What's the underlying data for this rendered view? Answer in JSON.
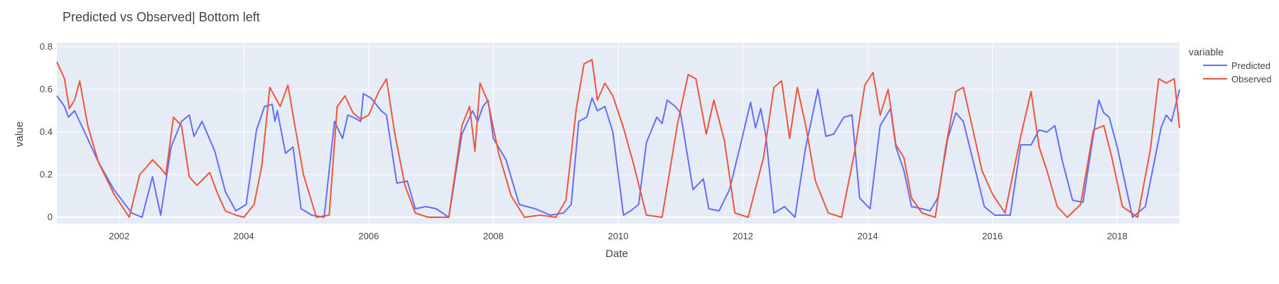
{
  "chart_data": {
    "type": "line",
    "title": "Predicted vs Observed| Bottom left",
    "xlabel": "Date",
    "ylabel": "value",
    "x_type": "date",
    "xlim": [
      "2001-01-01",
      "2019-01-01"
    ],
    "ylim": [
      -0.03,
      0.82
    ],
    "x_ticks": [
      "2002",
      "2004",
      "2006",
      "2008",
      "2010",
      "2012",
      "2014",
      "2016",
      "2018"
    ],
    "y_ticks": [
      "0",
      "0.2",
      "0.4",
      "0.6",
      "0.8"
    ],
    "grid": true,
    "legend": {
      "title": "variable",
      "placement": "right"
    },
    "series": [
      {
        "name": "Predicted",
        "color": "#636efa",
        "points": [
          [
            "2001-01-01",
            0.57
          ],
          [
            "2001-02-15",
            0.52
          ],
          [
            "2001-03-10",
            0.47
          ],
          [
            "2001-04-15",
            0.5
          ],
          [
            "2001-06-01",
            0.42
          ],
          [
            "2001-09-01",
            0.26
          ],
          [
            "2001-12-01",
            0.13
          ],
          [
            "2002-03-15",
            0.02
          ],
          [
            "2002-05-15",
            0.0
          ],
          [
            "2002-07-15",
            0.19
          ],
          [
            "2002-09-01",
            0.01
          ],
          [
            "2002-11-01",
            0.33
          ],
          [
            "2003-01-01",
            0.45
          ],
          [
            "2003-02-15",
            0.48
          ],
          [
            "2003-03-15",
            0.38
          ],
          [
            "2003-05-01",
            0.45
          ],
          [
            "2003-07-15",
            0.31
          ],
          [
            "2003-09-15",
            0.12
          ],
          [
            "2003-11-15",
            0.03
          ],
          [
            "2004-01-15",
            0.06
          ],
          [
            "2004-03-15",
            0.41
          ],
          [
            "2004-05-01",
            0.52
          ],
          [
            "2004-06-15",
            0.53
          ],
          [
            "2004-07-01",
            0.45
          ],
          [
            "2004-07-15",
            0.5
          ],
          [
            "2004-09-01",
            0.3
          ],
          [
            "2004-10-15",
            0.33
          ],
          [
            "2004-12-01",
            0.04
          ],
          [
            "2005-02-01",
            0.01
          ],
          [
            "2005-04-15",
            0.0
          ],
          [
            "2005-06-15",
            0.45
          ],
          [
            "2005-08-01",
            0.37
          ],
          [
            "2005-09-01",
            0.48
          ],
          [
            "2005-10-01",
            0.47
          ],
          [
            "2005-11-15",
            0.45
          ],
          [
            "2005-12-01",
            0.58
          ],
          [
            "2006-01-15",
            0.56
          ],
          [
            "2006-03-15",
            0.5
          ],
          [
            "2006-04-15",
            0.48
          ],
          [
            "2006-06-15",
            0.16
          ],
          [
            "2006-08-15",
            0.17
          ],
          [
            "2006-10-01",
            0.04
          ],
          [
            "2006-12-01",
            0.05
          ],
          [
            "2007-02-01",
            0.04
          ],
          [
            "2007-04-15",
            0.0
          ],
          [
            "2007-07-01",
            0.39
          ],
          [
            "2007-09-01",
            0.5
          ],
          [
            "2007-10-01",
            0.45
          ],
          [
            "2007-11-01",
            0.52
          ],
          [
            "2007-12-01",
            0.55
          ],
          [
            "2008-01-01",
            0.37
          ],
          [
            "2008-03-15",
            0.27
          ],
          [
            "2008-06-01",
            0.06
          ],
          [
            "2008-09-01",
            0.04
          ],
          [
            "2008-12-01",
            0.01
          ],
          [
            "2009-02-15",
            0.02
          ],
          [
            "2009-04-01",
            0.06
          ],
          [
            "2009-05-15",
            0.45
          ],
          [
            "2009-07-01",
            0.47
          ],
          [
            "2009-08-01",
            0.56
          ],
          [
            "2009-09-01",
            0.5
          ],
          [
            "2009-10-15",
            0.52
          ],
          [
            "2009-12-01",
            0.4
          ],
          [
            "2010-02-01",
            0.01
          ],
          [
            "2010-03-15",
            0.03
          ],
          [
            "2010-05-01",
            0.06
          ],
          [
            "2010-06-15",
            0.35
          ],
          [
            "2010-08-15",
            0.47
          ],
          [
            "2010-09-15",
            0.44
          ],
          [
            "2010-10-15",
            0.55
          ],
          [
            "2010-12-01",
            0.52
          ],
          [
            "2011-01-01",
            0.49
          ],
          [
            "2011-03-15",
            0.13
          ],
          [
            "2011-05-15",
            0.18
          ],
          [
            "2011-06-15",
            0.04
          ],
          [
            "2011-08-15",
            0.03
          ],
          [
            "2011-10-15",
            0.13
          ],
          [
            "2011-12-15",
            0.33
          ],
          [
            "2012-02-15",
            0.54
          ],
          [
            "2012-03-15",
            0.42
          ],
          [
            "2012-04-15",
            0.51
          ],
          [
            "2012-05-15",
            0.38
          ],
          [
            "2012-07-01",
            0.02
          ],
          [
            "2012-09-01",
            0.05
          ],
          [
            "2012-11-01",
            0.0
          ],
          [
            "2013-01-01",
            0.32
          ],
          [
            "2013-03-15",
            0.6
          ],
          [
            "2013-05-01",
            0.38
          ],
          [
            "2013-06-15",
            0.39
          ],
          [
            "2013-08-15",
            0.47
          ],
          [
            "2013-10-01",
            0.48
          ],
          [
            "2013-11-15",
            0.09
          ],
          [
            "2014-01-15",
            0.04
          ],
          [
            "2014-03-15",
            0.43
          ],
          [
            "2014-05-15",
            0.51
          ],
          [
            "2014-06-15",
            0.33
          ],
          [
            "2014-08-01",
            0.22
          ],
          [
            "2014-09-15",
            0.05
          ],
          [
            "2014-11-15",
            0.04
          ],
          [
            "2015-01-01",
            0.03
          ],
          [
            "2015-02-15",
            0.09
          ],
          [
            "2015-04-15",
            0.37
          ],
          [
            "2015-06-01",
            0.49
          ],
          [
            "2015-07-15",
            0.45
          ],
          [
            "2015-09-15",
            0.25
          ],
          [
            "2015-11-15",
            0.05
          ],
          [
            "2016-01-15",
            0.01
          ],
          [
            "2016-04-15",
            0.01
          ],
          [
            "2016-06-15",
            0.34
          ],
          [
            "2016-08-15",
            0.34
          ],
          [
            "2016-10-01",
            0.41
          ],
          [
            "2016-11-15",
            0.4
          ],
          [
            "2017-01-01",
            0.43
          ],
          [
            "2017-02-15",
            0.26
          ],
          [
            "2017-04-15",
            0.08
          ],
          [
            "2017-06-15",
            0.07
          ],
          [
            "2017-09-15",
            0.55
          ],
          [
            "2017-10-15",
            0.49
          ],
          [
            "2017-11-15",
            0.47
          ],
          [
            "2018-01-01",
            0.33
          ],
          [
            "2018-04-01",
            0.0
          ],
          [
            "2018-06-15",
            0.05
          ],
          [
            "2018-09-15",
            0.42
          ],
          [
            "2018-10-15",
            0.48
          ],
          [
            "2018-11-15",
            0.45
          ],
          [
            "2019-01-01",
            0.6
          ]
        ]
      },
      {
        "name": "Observed",
        "color": "#ef553b",
        "points": [
          [
            "2001-01-01",
            0.73
          ],
          [
            "2001-02-15",
            0.65
          ],
          [
            "2001-03-15",
            0.51
          ],
          [
            "2001-04-15",
            0.55
          ],
          [
            "2001-05-15",
            0.64
          ],
          [
            "2001-07-01",
            0.43
          ],
          [
            "2001-09-01",
            0.26
          ],
          [
            "2001-12-01",
            0.11
          ],
          [
            "2002-03-01",
            0.0
          ],
          [
            "2002-05-01",
            0.2
          ],
          [
            "2002-06-15",
            0.24
          ],
          [
            "2002-07-15",
            0.27
          ],
          [
            "2002-09-01",
            0.23
          ],
          [
            "2002-10-01",
            0.2
          ],
          [
            "2002-11-15",
            0.47
          ],
          [
            "2003-01-01",
            0.43
          ],
          [
            "2003-02-15",
            0.19
          ],
          [
            "2003-04-01",
            0.15
          ],
          [
            "2003-06-15",
            0.21
          ],
          [
            "2003-08-01",
            0.11
          ],
          [
            "2003-09-15",
            0.03
          ],
          [
            "2003-11-15",
            0.01
          ],
          [
            "2004-01-01",
            0.0
          ],
          [
            "2004-03-01",
            0.06
          ],
          [
            "2004-04-15",
            0.24
          ],
          [
            "2004-06-01",
            0.61
          ],
          [
            "2004-08-01",
            0.52
          ],
          [
            "2004-09-15",
            0.62
          ],
          [
            "2004-10-15",
            0.48
          ],
          [
            "2004-12-15",
            0.2
          ],
          [
            "2005-03-01",
            0.0
          ],
          [
            "2005-05-15",
            0.01
          ],
          [
            "2005-07-01",
            0.52
          ],
          [
            "2005-08-15",
            0.57
          ],
          [
            "2005-10-01",
            0.49
          ],
          [
            "2005-11-15",
            0.46
          ],
          [
            "2006-01-01",
            0.48
          ],
          [
            "2006-03-01",
            0.59
          ],
          [
            "2006-04-15",
            0.65
          ],
          [
            "2006-06-01",
            0.4
          ],
          [
            "2006-08-01",
            0.15
          ],
          [
            "2006-10-01",
            0.02
          ],
          [
            "2006-12-15",
            0.0
          ],
          [
            "2007-02-15",
            0.0
          ],
          [
            "2007-04-15",
            0.0
          ],
          [
            "2007-07-01",
            0.43
          ],
          [
            "2007-08-15",
            0.52
          ],
          [
            "2007-09-15",
            0.31
          ],
          [
            "2007-10-15",
            0.63
          ],
          [
            "2007-12-01",
            0.54
          ],
          [
            "2008-02-01",
            0.3
          ],
          [
            "2008-04-15",
            0.1
          ],
          [
            "2008-07-01",
            0.0
          ],
          [
            "2008-10-01",
            0.01
          ],
          [
            "2009-01-01",
            0.0
          ],
          [
            "2009-03-01",
            0.08
          ],
          [
            "2009-05-01",
            0.51
          ],
          [
            "2009-06-15",
            0.72
          ],
          [
            "2009-08-01",
            0.74
          ],
          [
            "2009-09-01",
            0.55
          ],
          [
            "2009-10-15",
            0.63
          ],
          [
            "2009-12-01",
            0.57
          ],
          [
            "2010-02-01",
            0.42
          ],
          [
            "2010-04-01",
            0.25
          ],
          [
            "2010-06-15",
            0.01
          ],
          [
            "2010-09-15",
            0.0
          ],
          [
            "2010-12-15",
            0.44
          ],
          [
            "2011-02-15",
            0.67
          ],
          [
            "2011-04-01",
            0.65
          ],
          [
            "2011-06-01",
            0.39
          ],
          [
            "2011-07-15",
            0.55
          ],
          [
            "2011-09-15",
            0.36
          ],
          [
            "2011-11-15",
            0.02
          ],
          [
            "2012-02-01",
            0.0
          ],
          [
            "2012-05-01",
            0.28
          ],
          [
            "2012-07-01",
            0.61
          ],
          [
            "2012-08-15",
            0.64
          ],
          [
            "2012-10-01",
            0.37
          ],
          [
            "2012-11-15",
            0.61
          ],
          [
            "2013-01-01",
            0.44
          ],
          [
            "2013-03-01",
            0.17
          ],
          [
            "2013-05-15",
            0.02
          ],
          [
            "2013-08-01",
            0.0
          ],
          [
            "2013-10-15",
            0.3
          ],
          [
            "2013-12-15",
            0.62
          ],
          [
            "2014-02-01",
            0.68
          ],
          [
            "2014-03-15",
            0.48
          ],
          [
            "2014-05-01",
            0.6
          ],
          [
            "2014-06-15",
            0.34
          ],
          [
            "2014-08-01",
            0.28
          ],
          [
            "2014-09-15",
            0.09
          ],
          [
            "2014-11-15",
            0.02
          ],
          [
            "2015-02-01",
            0.0
          ],
          [
            "2015-04-01",
            0.32
          ],
          [
            "2015-06-01",
            0.59
          ],
          [
            "2015-07-15",
            0.61
          ],
          [
            "2015-09-01",
            0.44
          ],
          [
            "2015-11-01",
            0.22
          ],
          [
            "2016-01-01",
            0.11
          ],
          [
            "2016-03-15",
            0.02
          ],
          [
            "2016-06-15",
            0.38
          ],
          [
            "2016-08-15",
            0.59
          ],
          [
            "2016-10-01",
            0.33
          ],
          [
            "2016-11-15",
            0.22
          ],
          [
            "2017-01-15",
            0.05
          ],
          [
            "2017-03-15",
            0.0
          ],
          [
            "2017-06-01",
            0.06
          ],
          [
            "2017-08-15",
            0.41
          ],
          [
            "2017-10-15",
            0.43
          ],
          [
            "2017-12-01",
            0.28
          ],
          [
            "2018-02-01",
            0.05
          ],
          [
            "2018-05-01",
            0.0
          ],
          [
            "2018-07-15",
            0.32
          ],
          [
            "2018-09-01",
            0.65
          ],
          [
            "2018-10-15",
            0.63
          ],
          [
            "2018-12-01",
            0.65
          ],
          [
            "2019-01-01",
            0.42
          ]
        ]
      }
    ]
  }
}
